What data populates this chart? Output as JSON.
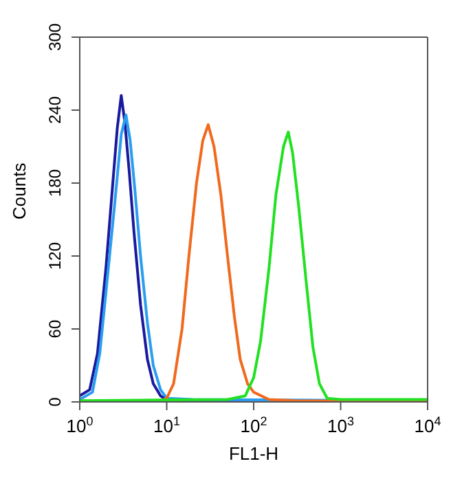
{
  "chart_data": {
    "type": "line",
    "xlabel": "FL1-H",
    "ylabel": "Counts",
    "log": "x",
    "xlim": [
      1,
      10000
    ],
    "ylim": [
      0,
      300
    ],
    "xticks": [
      {
        "value": 1,
        "label": "10$^{0}$"
      },
      {
        "value": 10,
        "label": "10$^{1}$"
      },
      {
        "value": 100,
        "label": "10$^{2}$"
      },
      {
        "value": 1000,
        "label": "10$^{3}$"
      },
      {
        "value": 10000,
        "label": "10$^{4}$"
      }
    ],
    "yticks": [
      0,
      60,
      120,
      180,
      240,
      300
    ],
    "marker": "none",
    "line_style": "solid",
    "series": [
      {
        "color": "#1a1a9e",
        "x": [
          1,
          1.3,
          1.6,
          2,
          2.4,
          2.7,
          3,
          3.3,
          3.7,
          4.2,
          5,
          6,
          7,
          8.5,
          10,
          20,
          10000
        ],
        "values": [
          5,
          10,
          40,
          110,
          180,
          225,
          252,
          230,
          190,
          140,
          80,
          35,
          15,
          5,
          2,
          0,
          0
        ]
      },
      {
        "color": "#2a9df0",
        "x": [
          1,
          1.4,
          1.7,
          2,
          2.5,
          3,
          3.4,
          3.8,
          4.3,
          5,
          6,
          7,
          8.5,
          10,
          20,
          10000
        ],
        "values": [
          2,
          8,
          40,
          90,
          160,
          220,
          236,
          215,
          175,
          120,
          65,
          30,
          10,
          3,
          2,
          1
        ]
      },
      {
        "color": "#f06a1e",
        "x": [
          1,
          8,
          10,
          12,
          15,
          18,
          22,
          26,
          30,
          35,
          42,
          50,
          60,
          70,
          85,
          100,
          150,
          300,
          10000
        ],
        "values": [
          0,
          0,
          3,
          15,
          60,
          120,
          180,
          215,
          228,
          210,
          170,
          120,
          70,
          35,
          15,
          8,
          2,
          1,
          0
        ]
      },
      {
        "color": "#22e022",
        "x": [
          1,
          50,
          80,
          100,
          120,
          150,
          180,
          220,
          250,
          280,
          330,
          400,
          480,
          570,
          700,
          1000,
          10000
        ],
        "values": [
          1,
          2,
          5,
          20,
          50,
          110,
          170,
          210,
          222,
          205,
          160,
          100,
          45,
          15,
          3,
          2,
          2
        ]
      }
    ]
  }
}
